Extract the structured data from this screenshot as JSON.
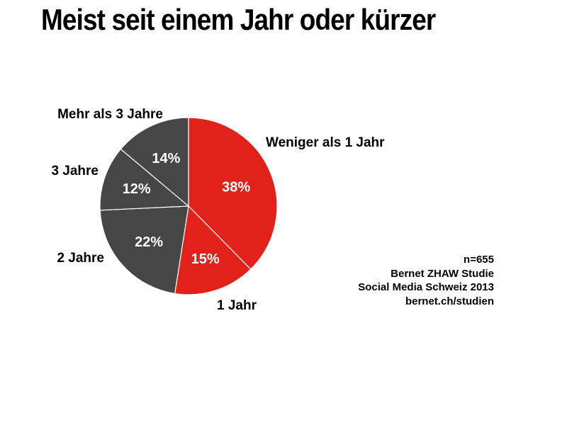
{
  "title": "Meist seit einem Jahr oder kürzer",
  "source": {
    "n": "n=655",
    "line1": "Bernet ZHAW Studie",
    "line2": "Social Media Schweiz 2013",
    "line3": "bernet.ch/studien"
  },
  "colors": {
    "red": "#e3211b",
    "dark": "#464646",
    "separator": "#ffffff"
  },
  "chart_data": {
    "type": "pie",
    "title": "Meist seit einem Jahr oder kürzer",
    "start": "12 o'clock",
    "direction": "clockwise",
    "slices": [
      {
        "label": "Weniger als 1 Jahr",
        "value": 38,
        "value_label": "38%",
        "color": "#e3211b"
      },
      {
        "label": "1 Jahr",
        "value": 15,
        "value_label": "15%",
        "color": "#e3211b"
      },
      {
        "label": "2 Jahre",
        "value": 22,
        "value_label": "22%",
        "color": "#464646"
      },
      {
        "label": "3 Jahre",
        "value": 12,
        "value_label": "12%",
        "color": "#464646"
      },
      {
        "label": "Mehr als 3 Jahre",
        "value": 14,
        "value_label": "14%",
        "color": "#464646"
      }
    ]
  }
}
